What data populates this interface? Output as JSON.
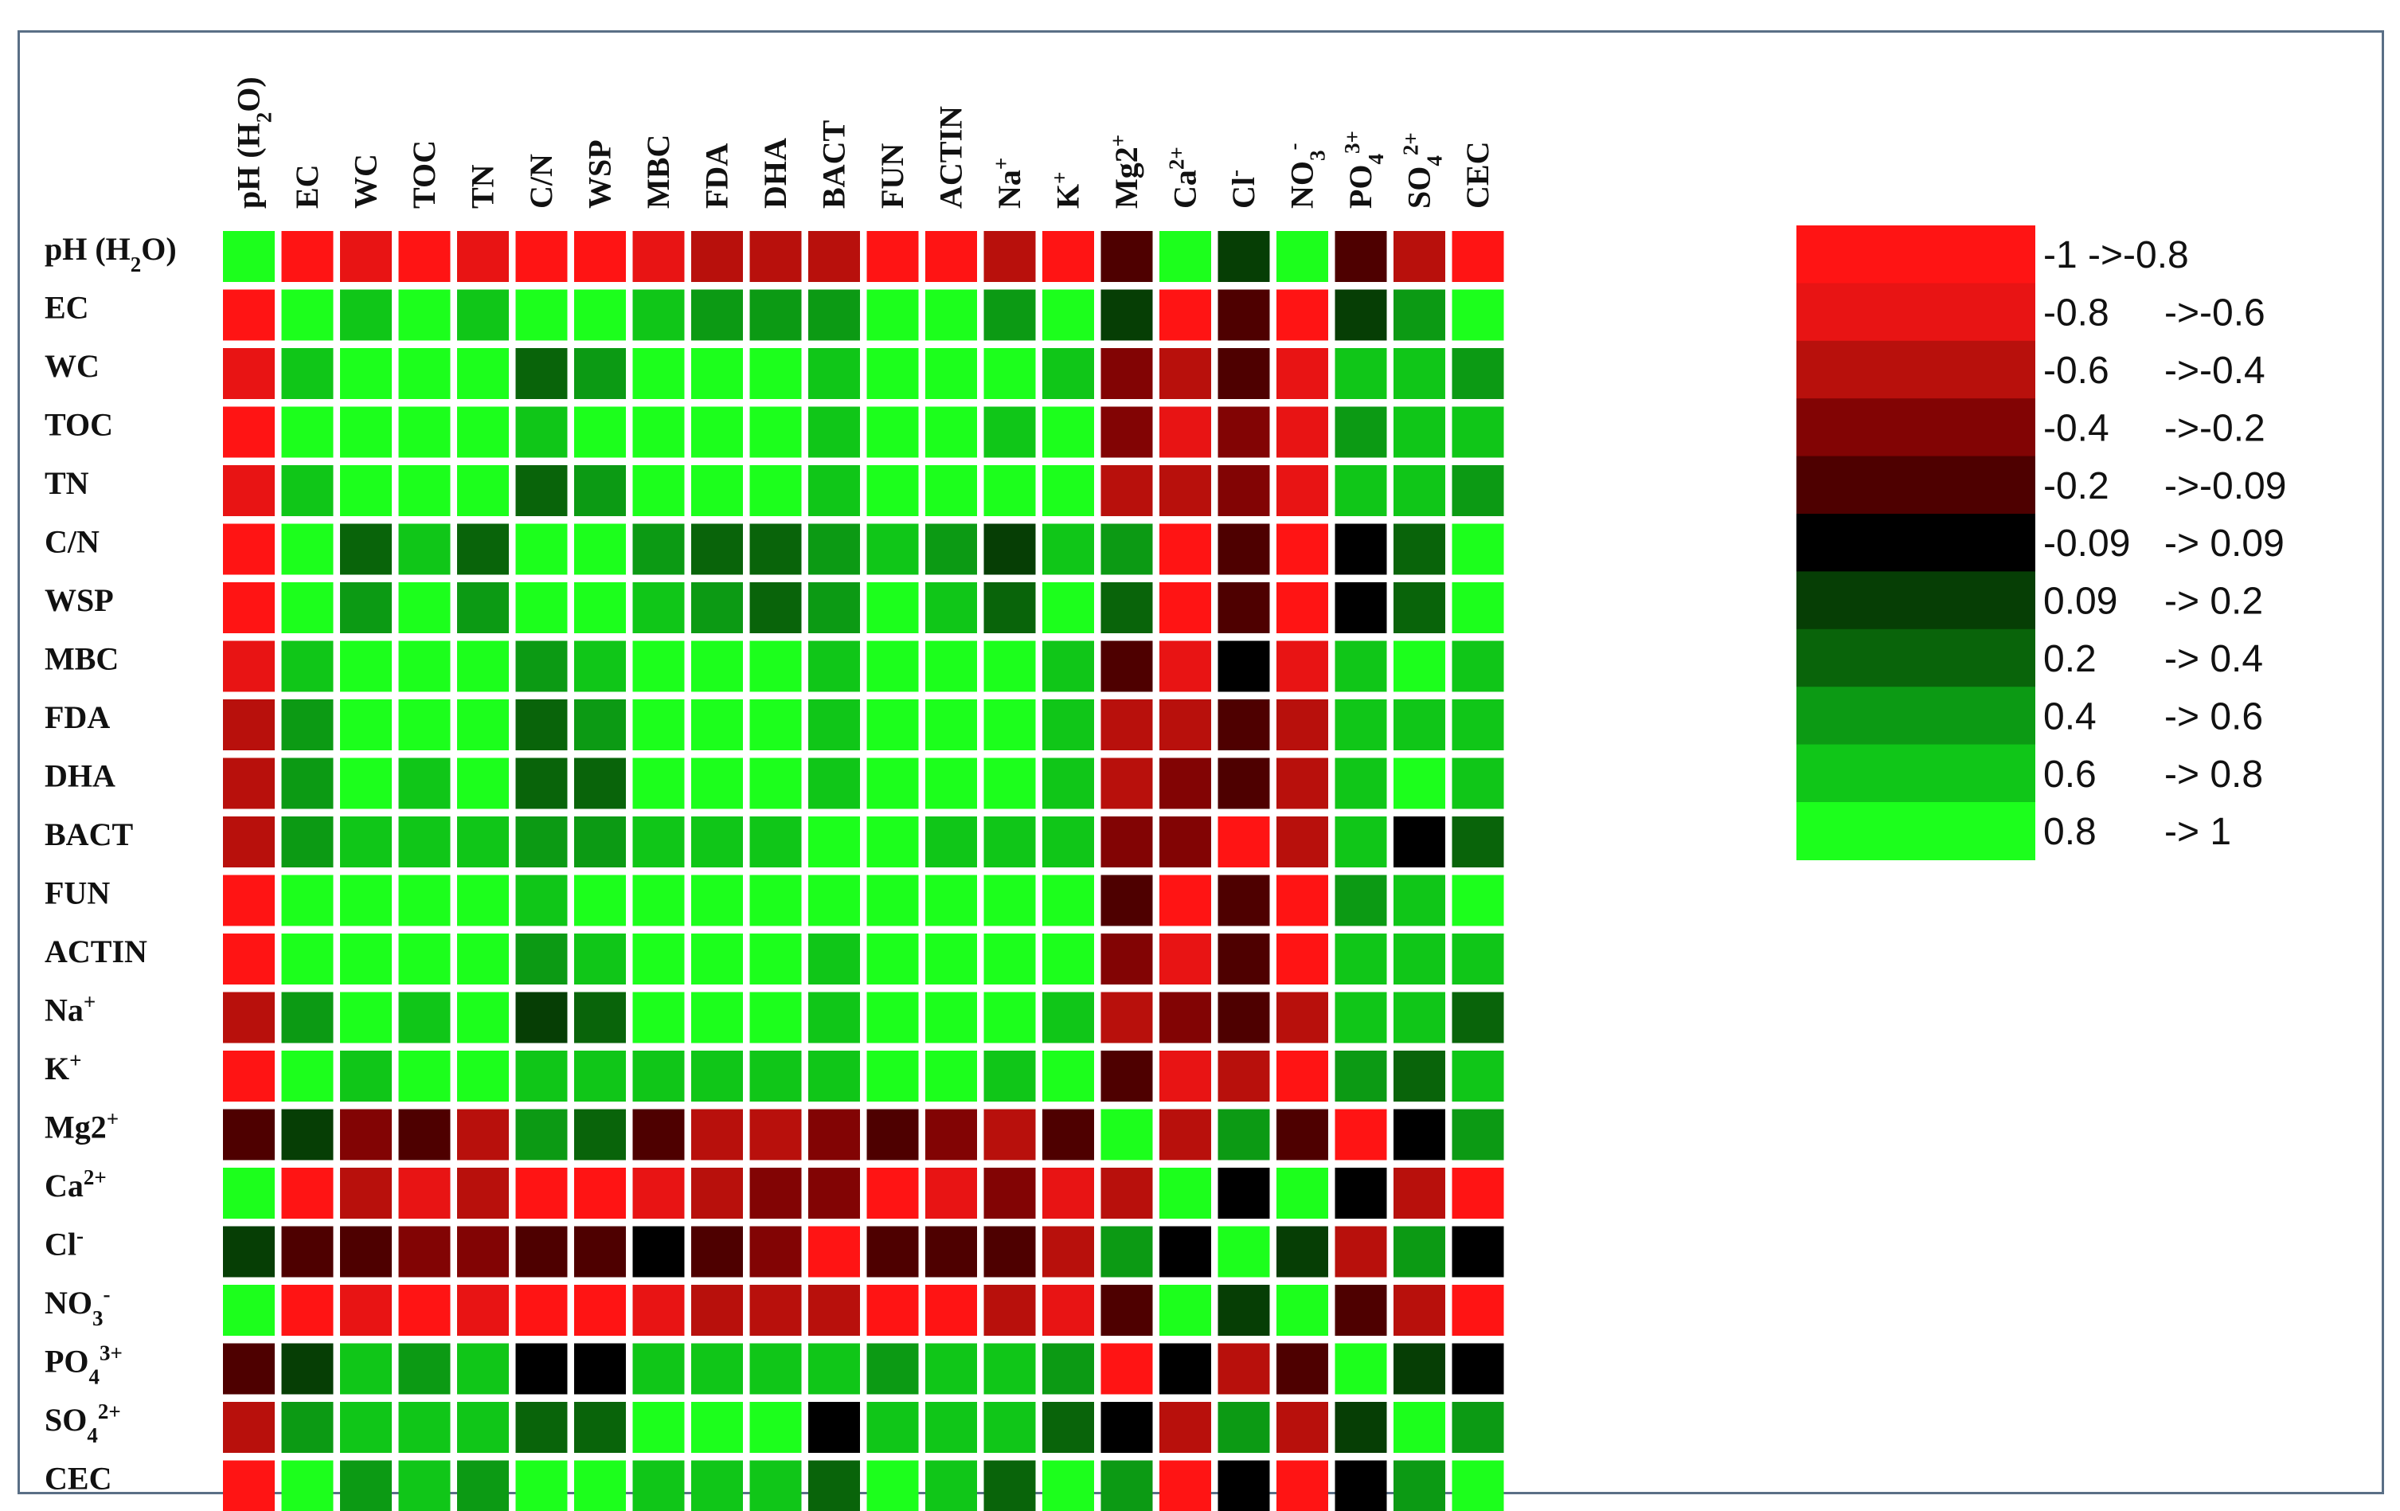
{
  "chart_data": {
    "type": "heatmap",
    "variables": [
      "pH (H2O)",
      "EC",
      "WC",
      "TOC",
      "TN",
      "C/N",
      "WSP",
      "MBC",
      "FDA",
      "DHA",
      "BACT",
      "FUN",
      "ACTIN",
      "Na+",
      "K+",
      "Mg2+",
      "Ca2+",
      "Cl-",
      "NO3-",
      "PO43+",
      "SO42+",
      "CEC"
    ],
    "col_labels": [
      {
        "base": "pH (H",
        "sub": "2",
        "tail": "O)"
      },
      {
        "base": "EC"
      },
      {
        "base": "WC"
      },
      {
        "base": "TOC"
      },
      {
        "base": "TN"
      },
      {
        "base": "C/N"
      },
      {
        "base": "WSP"
      },
      {
        "base": "MBC"
      },
      {
        "base": "FDA"
      },
      {
        "base": "DHA"
      },
      {
        "base": "BACT"
      },
      {
        "base": "FUN"
      },
      {
        "base": "ACTIN"
      },
      {
        "base": "Na",
        "sup": "+"
      },
      {
        "base": "K",
        "sup": "+"
      },
      {
        "base": "Mg2",
        "sup": "+"
      },
      {
        "base": "Ca",
        "sup": "2+"
      },
      {
        "base": "Cl",
        "sup": "-"
      },
      {
        "base": "NO",
        "sub": "3",
        "sup": "-"
      },
      {
        "base": "PO",
        "sub": "4",
        "sup": "3+"
      },
      {
        "base": "SO",
        "sub": "4",
        "sup": "2+"
      },
      {
        "base": "CEC"
      }
    ],
    "row_labels": [
      {
        "base": "pH (H",
        "sub": "2",
        "tail": "O)"
      },
      {
        "base": "EC"
      },
      {
        "base": "WC"
      },
      {
        "base": "TOC"
      },
      {
        "base": "TN"
      },
      {
        "base": "C/N"
      },
      {
        "base": "WSP"
      },
      {
        "base": "MBC"
      },
      {
        "base": "FDA"
      },
      {
        "base": "DHA"
      },
      {
        "base": "BACT"
      },
      {
        "base": "FUN"
      },
      {
        "base": "ACTIN"
      },
      {
        "base": "Na",
        "sup": "+"
      },
      {
        "base": "K",
        "sup": "+"
      },
      {
        "base": "Mg2",
        "sup": "+"
      },
      {
        "base": "Ca",
        "sup": "2+"
      },
      {
        "base": "Cl",
        "sup": "-"
      },
      {
        "base": "NO",
        "sub": "3",
        "sup": "-"
      },
      {
        "base": "PO",
        "sub": "4",
        "sup": "3+"
      },
      {
        "base": "SO",
        "sub": "4",
        "sup": "2+"
      },
      {
        "base": "CEC"
      }
    ],
    "value_note": "cell values = legend class index 0..10 (0: -1 -> -0.8 ... 10: 0.8 -> 1)",
    "values": [
      [
        10,
        0,
        1,
        0,
        1,
        0,
        0,
        1,
        2,
        2,
        2,
        0,
        0,
        2,
        0,
        4,
        10,
        6,
        10,
        4,
        2,
        0
      ],
      [
        0,
        10,
        9,
        10,
        9,
        10,
        10,
        9,
        8,
        8,
        8,
        10,
        10,
        8,
        10,
        6,
        0,
        4,
        0,
        6,
        8,
        10
      ],
      [
        1,
        9,
        10,
        10,
        10,
        7,
        8,
        10,
        10,
        10,
        9,
        10,
        10,
        10,
        9,
        3,
        2,
        4,
        1,
        9,
        9,
        8
      ],
      [
        0,
        10,
        10,
        10,
        10,
        9,
        10,
        10,
        10,
        10,
        9,
        10,
        10,
        9,
        10,
        3,
        1,
        3,
        1,
        8,
        9,
        9
      ],
      [
        1,
        9,
        10,
        10,
        10,
        7,
        8,
        10,
        10,
        10,
        9,
        10,
        10,
        10,
        10,
        2,
        2,
        3,
        1,
        9,
        9,
        8
      ],
      [
        0,
        10,
        7,
        9,
        7,
        10,
        10,
        8,
        7,
        7,
        8,
        9,
        8,
        6,
        9,
        8,
        0,
        4,
        0,
        5,
        7,
        10
      ],
      [
        0,
        10,
        8,
        10,
        8,
        10,
        10,
        9,
        8,
        7,
        8,
        10,
        9,
        7,
        10,
        7,
        0,
        4,
        0,
        5,
        7,
        10
      ],
      [
        1,
        9,
        10,
        10,
        10,
        8,
        9,
        10,
        10,
        10,
        9,
        10,
        10,
        10,
        9,
        4,
        1,
        5,
        1,
        9,
        10,
        9
      ],
      [
        2,
        8,
        10,
        10,
        10,
        7,
        8,
        10,
        10,
        10,
        9,
        10,
        10,
        10,
        9,
        2,
        2,
        4,
        2,
        9,
        9,
        9
      ],
      [
        2,
        8,
        10,
        9,
        10,
        7,
        7,
        10,
        10,
        10,
        9,
        10,
        10,
        10,
        9,
        2,
        3,
        4,
        2,
        9,
        10,
        9
      ],
      [
        2,
        8,
        9,
        9,
        9,
        8,
        8,
        9,
        9,
        9,
        10,
        10,
        9,
        9,
        9,
        3,
        3,
        0,
        2,
        9,
        5,
        7
      ],
      [
        0,
        10,
        10,
        10,
        10,
        9,
        10,
        10,
        10,
        10,
        10,
        10,
        10,
        10,
        10,
        4,
        0,
        4,
        0,
        8,
        9,
        10
      ],
      [
        0,
        10,
        10,
        10,
        10,
        8,
        9,
        10,
        10,
        10,
        9,
        10,
        10,
        10,
        10,
        3,
        1,
        4,
        0,
        9,
        9,
        9
      ],
      [
        2,
        8,
        10,
        9,
        10,
        6,
        7,
        10,
        10,
        10,
        9,
        10,
        10,
        10,
        9,
        2,
        3,
        4,
        2,
        9,
        9,
        7
      ],
      [
        0,
        10,
        9,
        10,
        10,
        9,
        9,
        9,
        9,
        9,
        9,
        10,
        10,
        9,
        10,
        4,
        1,
        2,
        0,
        8,
        7,
        9
      ],
      [
        4,
        6,
        3,
        4,
        2,
        8,
        7,
        4,
        2,
        2,
        3,
        4,
        3,
        2,
        4,
        10,
        2,
        8,
        4,
        0,
        5,
        8
      ],
      [
        10,
        0,
        2,
        1,
        2,
        0,
        0,
        1,
        2,
        3,
        3,
        0,
        1,
        3,
        1,
        2,
        10,
        5,
        10,
        5,
        2,
        0
      ],
      [
        6,
        4,
        4,
        3,
        3,
        4,
        4,
        5,
        4,
        3,
        0,
        4,
        4,
        4,
        2,
        8,
        5,
        10,
        6,
        2,
        8,
        5
      ],
      [
        10,
        0,
        1,
        0,
        1,
        0,
        0,
        1,
        2,
        2,
        2,
        0,
        0,
        2,
        1,
        4,
        10,
        6,
        10,
        4,
        2,
        0
      ],
      [
        4,
        6,
        9,
        8,
        9,
        5,
        5,
        9,
        9,
        9,
        9,
        8,
        9,
        9,
        8,
        0,
        5,
        2,
        4,
        10,
        6,
        5
      ],
      [
        2,
        8,
        9,
        9,
        9,
        7,
        7,
        10,
        10,
        10,
        5,
        9,
        9,
        9,
        7,
        5,
        2,
        8,
        2,
        6,
        10,
        8
      ],
      [
        0,
        10,
        8,
        9,
        8,
        10,
        10,
        9,
        9,
        9,
        7,
        10,
        9,
        7,
        10,
        8,
        0,
        5,
        0,
        5,
        8,
        10
      ]
    ],
    "legend": {
      "title": "",
      "colors": [
        "#ff1414",
        "#e81414",
        "#b8100c",
        "#820404",
        "#4e0000",
        "#000000",
        "#063e05",
        "#09640a",
        "#0c9a14",
        "#10c618",
        "#1cff1c"
      ],
      "labels": [
        [
          "-1 ->-0.8",
          ""
        ],
        [
          "-0.8",
          "->-0.6"
        ],
        [
          "-0.6",
          "->-0.4"
        ],
        [
          "-0.4",
          "->-0.2"
        ],
        [
          "-0.2",
          "->-0.09"
        ],
        [
          "-0.09",
          "-> 0.09"
        ],
        [
          "0.09",
          "-> 0.2"
        ],
        [
          "0.2",
          "-> 0.4"
        ],
        [
          "0.4",
          "-> 0.6"
        ],
        [
          "0.6",
          "-> 0.8"
        ],
        [
          "0.8",
          "-> 1"
        ]
      ]
    }
  }
}
